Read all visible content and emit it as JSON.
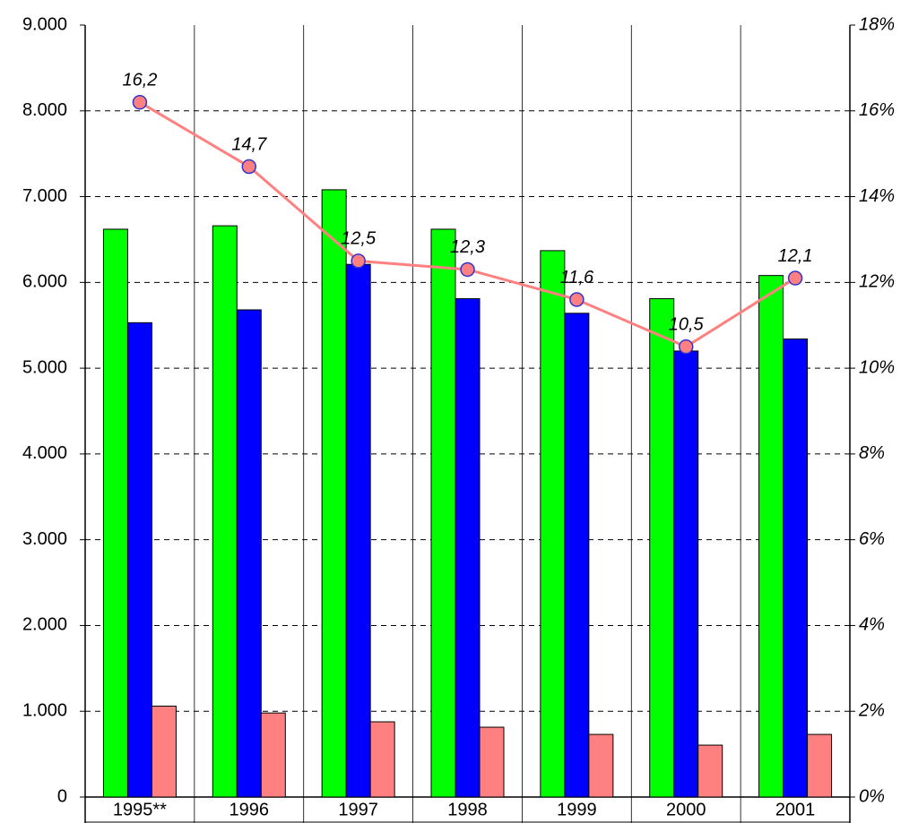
{
  "chart_data": {
    "type": "bar",
    "categories": [
      "1995**",
      "1996",
      "1997",
      "1998",
      "1999",
      "2000",
      "2001"
    ],
    "series": [
      {
        "color": "#00ff00",
        "values": [
          6620,
          6660,
          7080,
          6620,
          6370,
          5810,
          6080
        ]
      },
      {
        "color": "#0000ff",
        "values": [
          5530,
          5680,
          6210,
          5810,
          5640,
          5200,
          5340
        ]
      },
      {
        "color": "#ff8080",
        "values": [
          1060,
          980,
          877,
          814,
          730,
          605,
          730
        ]
      },
      {
        "type": "line",
        "axis": "y2",
        "color": "#ff8080",
        "marker_edge_color": "#3333cc",
        "values": [
          16.2,
          14.7,
          12.5,
          12.3,
          11.6,
          10.5,
          12.1
        ],
        "value_labels": [
          "16,2",
          "14,7",
          "12,5",
          "12,3",
          "11,6",
          "10,5",
          "12,1"
        ]
      }
    ],
    "ylim": [
      0,
      9000
    ],
    "yticks": [
      0,
      {
        "value": 1000,
        "label": "1.000"
      },
      {
        "value": 2000,
        "label": "2.000"
      },
      {
        "value": 3000,
        "label": "3.000"
      },
      {
        "value": 4000,
        "label": "4.000"
      },
      {
        "value": 5000,
        "label": "5.000"
      },
      {
        "value": 6000,
        "label": "6.000"
      },
      {
        "value": 7000,
        "label": "7.000"
      },
      {
        "value": 8000,
        "label": "8.000"
      },
      {
        "value": 9000,
        "label": "9.000"
      }
    ],
    "y2lim": [
      0,
      18
    ],
    "y2ticks": [
      {
        "value": 0,
        "label": "0%"
      },
      {
        "value": 2,
        "label": "2%"
      },
      {
        "value": 4,
        "label": "4%"
      },
      {
        "value": 6,
        "label": "6%"
      },
      {
        "value": 8,
        "label": "8%"
      },
      {
        "value": 10,
        "label": "10%"
      },
      {
        "value": 12,
        "label": "12%"
      },
      {
        "value": 14,
        "label": "14%"
      },
      {
        "value": 16,
        "label": "16%"
      },
      {
        "value": 18,
        "label": "18%"
      }
    ],
    "grid": true
  }
}
